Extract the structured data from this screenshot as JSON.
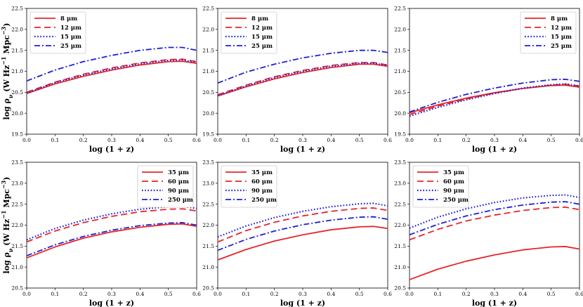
{
  "figure": {
    "ylabel": "log ρ",
    "ylabel_sub": "ν",
    "ylabel_units": "(W Hz",
    "ylabel_exp": "−1",
    "ylabel_units2": " Mpc",
    "ylabel_exp2": "−3",
    "ylabel_close": ")",
    "xlabel": "log (1 + z)"
  },
  "colors": {
    "red": "#e8242a",
    "blue": "#1f1fd6"
  },
  "chart_data": [
    {
      "type": "line",
      "panel": "top-left",
      "xlabel": "log (1 + z)",
      "ylabel": "log ρν (W Hz−1 Mpc−3)",
      "xlim": [
        0.0,
        0.6
      ],
      "ylim": [
        19.5,
        22.5
      ],
      "xticks": [
        "0.0",
        "0.1",
        "0.2",
        "0.3",
        "0.4",
        "0.5",
        "0.6"
      ],
      "yticks": [
        "19.5",
        "20.0",
        "20.5",
        "21.0",
        "21.5",
        "22.0",
        "22.5"
      ],
      "legend_position": "top-left",
      "x": [
        0.0,
        0.1,
        0.2,
        0.3,
        0.4,
        0.5,
        0.55,
        0.6
      ],
      "series": [
        {
          "name": "8 μm",
          "style": "solid",
          "color": "red",
          "values": [
            20.47,
            20.7,
            20.88,
            21.03,
            21.15,
            21.23,
            21.24,
            21.19
          ]
        },
        {
          "name": "12 μm",
          "style": "dashed",
          "color": "red",
          "values": [
            20.5,
            20.74,
            20.93,
            21.08,
            21.2,
            21.28,
            21.29,
            21.23
          ]
        },
        {
          "name": "15 μm",
          "style": "dotted",
          "color": "blue",
          "values": [
            20.48,
            20.73,
            20.91,
            21.06,
            21.18,
            21.26,
            21.27,
            21.21
          ]
        },
        {
          "name": "25 μm",
          "style": "dashdot",
          "color": "blue",
          "values": [
            20.77,
            21.03,
            21.23,
            21.38,
            21.5,
            21.57,
            21.57,
            21.5
          ]
        }
      ]
    },
    {
      "type": "line",
      "panel": "top-middle",
      "xlabel": "log (1 + z)",
      "ylabel": "",
      "xlim": [
        0.0,
        0.6
      ],
      "ylim": [
        19.5,
        22.5
      ],
      "xticks": [
        "0.0",
        "0.1",
        "0.2",
        "0.3",
        "0.4",
        "0.5",
        "0.6"
      ],
      "yticks": [
        "19.5",
        "20.0",
        "20.5",
        "21.0",
        "21.5",
        "22.0",
        "22.5"
      ],
      "legend_position": "top-left",
      "x": [
        0.0,
        0.1,
        0.2,
        0.3,
        0.4,
        0.5,
        0.55,
        0.6
      ],
      "series": [
        {
          "name": "8 μm",
          "style": "solid",
          "color": "red",
          "values": [
            20.41,
            20.63,
            20.82,
            20.97,
            21.09,
            21.17,
            21.17,
            21.12
          ]
        },
        {
          "name": "12 μm",
          "style": "dashed",
          "color": "red",
          "values": [
            20.44,
            20.67,
            20.87,
            21.02,
            21.14,
            21.21,
            21.21,
            21.15
          ]
        },
        {
          "name": "15 μm",
          "style": "dotted",
          "color": "blue",
          "values": [
            20.42,
            20.65,
            20.85,
            21.0,
            21.12,
            21.19,
            21.19,
            21.14
          ]
        },
        {
          "name": "25 μm",
          "style": "dashdot",
          "color": "blue",
          "values": [
            20.72,
            20.98,
            21.17,
            21.32,
            21.43,
            21.5,
            21.5,
            21.45
          ]
        }
      ]
    },
    {
      "type": "line",
      "panel": "top-right",
      "xlabel": "log (1 + z)",
      "ylabel": "",
      "xlim": [
        0.0,
        0.6
      ],
      "ylim": [
        19.5,
        22.5
      ],
      "xticks": [
        "0.0",
        "0.1",
        "0.2",
        "0.3",
        "0.4",
        "0.5",
        "0.6"
      ],
      "yticks": [
        "19.5",
        "20.0",
        "20.5",
        "21.0",
        "21.5",
        "22.0",
        "22.5"
      ],
      "legend_position": "top-right",
      "x": [
        0.0,
        0.1,
        0.2,
        0.3,
        0.4,
        0.5,
        0.55,
        0.6
      ],
      "series": [
        {
          "name": "8 μm",
          "style": "solid",
          "color": "red",
          "values": [
            20.01,
            20.2,
            20.36,
            20.49,
            20.59,
            20.66,
            20.67,
            20.62
          ]
        },
        {
          "name": "12 μm",
          "style": "dashed",
          "color": "red",
          "values": [
            19.97,
            20.17,
            20.34,
            20.48,
            20.59,
            20.67,
            20.69,
            20.65
          ]
        },
        {
          "name": "15 μm",
          "style": "dotted",
          "color": "blue",
          "values": [
            19.93,
            20.14,
            20.32,
            20.47,
            20.6,
            20.68,
            20.7,
            20.65
          ]
        },
        {
          "name": "25 μm",
          "style": "dashdot",
          "color": "blue",
          "values": [
            20.03,
            20.26,
            20.45,
            20.6,
            20.72,
            20.8,
            20.81,
            20.76
          ]
        }
      ]
    },
    {
      "type": "line",
      "panel": "bottom-left",
      "xlabel": "log (1 + z)",
      "ylabel": "log ρν (W Hz−1 Mpc−3)",
      "xlim": [
        0.0,
        0.6
      ],
      "ylim": [
        20.5,
        23.5
      ],
      "xticks": [
        "0.0",
        "0.1",
        "0.2",
        "0.3",
        "0.4",
        "0.5",
        "0.6"
      ],
      "yticks": [
        "20.5",
        "21.0",
        "21.5",
        "22.0",
        "22.5",
        "23.0",
        "23.5"
      ],
      "legend_position": "top-right",
      "x": [
        0.0,
        0.1,
        0.2,
        0.3,
        0.4,
        0.5,
        0.55,
        0.6
      ],
      "series": [
        {
          "name": "35 μm",
          "style": "solid",
          "color": "red",
          "values": [
            21.22,
            21.48,
            21.69,
            21.84,
            21.95,
            22.02,
            22.03,
            21.97
          ]
        },
        {
          "name": "60 μm",
          "style": "dashed",
          "color": "red",
          "values": [
            21.6,
            21.86,
            22.06,
            22.21,
            22.32,
            22.38,
            22.39,
            22.34
          ]
        },
        {
          "name": "90 μm",
          "style": "dotted",
          "color": "blue",
          "values": [
            21.65,
            21.92,
            22.12,
            22.27,
            22.38,
            22.44,
            22.45,
            22.4
          ]
        },
        {
          "name": "250 μm",
          "style": "dashdot",
          "color": "blue",
          "values": [
            21.27,
            21.53,
            21.73,
            21.88,
            21.99,
            22.05,
            22.06,
            22.0
          ]
        }
      ]
    },
    {
      "type": "line",
      "panel": "bottom-middle",
      "xlabel": "log (1 + z)",
      "ylabel": "",
      "xlim": [
        0.0,
        0.6
      ],
      "ylim": [
        20.5,
        23.5
      ],
      "xticks": [
        "0.0",
        "0.1",
        "0.2",
        "0.3",
        "0.4",
        "0.5",
        "0.6"
      ],
      "yticks": [
        "20.5",
        "21.0",
        "21.5",
        "22.0",
        "22.5",
        "23.0",
        "23.5"
      ],
      "legend_position": "top-left",
      "x": [
        0.0,
        0.1,
        0.2,
        0.3,
        0.4,
        0.5,
        0.55,
        0.6
      ],
      "series": [
        {
          "name": "35 μm",
          "style": "solid",
          "color": "red",
          "values": [
            21.17,
            21.42,
            21.62,
            21.77,
            21.89,
            21.96,
            21.97,
            21.92
          ]
        },
        {
          "name": "60 μm",
          "style": "dashed",
          "color": "red",
          "values": [
            21.6,
            21.87,
            22.07,
            22.22,
            22.33,
            22.4,
            22.41,
            22.35
          ]
        },
        {
          "name": "90 μm",
          "style": "dotted",
          "color": "blue",
          "values": [
            21.72,
            21.98,
            22.18,
            22.33,
            22.44,
            22.51,
            22.52,
            22.46
          ]
        },
        {
          "name": "250 μm",
          "style": "dashdot",
          "color": "blue",
          "values": [
            21.4,
            21.66,
            21.86,
            22.01,
            22.12,
            22.19,
            22.2,
            22.14
          ]
        }
      ]
    },
    {
      "type": "line",
      "panel": "bottom-right",
      "xlabel": "log (1 + z)",
      "ylabel": "",
      "xlim": [
        0.0,
        0.6
      ],
      "ylim": [
        20.5,
        23.5
      ],
      "xticks": [
        "0.0",
        "0.1",
        "0.2",
        "0.3",
        "0.4",
        "0.5",
        "0.6"
      ],
      "yticks": [
        "20.5",
        "21.0",
        "21.5",
        "22.0",
        "22.5",
        "23.0",
        "23.5"
      ],
      "legend_position": "top-left",
      "x": [
        0.0,
        0.1,
        0.2,
        0.3,
        0.4,
        0.5,
        0.55,
        0.6
      ],
      "series": [
        {
          "name": "35 μm",
          "style": "solid",
          "color": "red",
          "values": [
            20.7,
            20.95,
            21.14,
            21.29,
            21.41,
            21.48,
            21.49,
            21.43
          ]
        },
        {
          "name": "60 μm",
          "style": "dashed",
          "color": "red",
          "values": [
            21.65,
            21.9,
            22.1,
            22.24,
            22.35,
            22.42,
            22.43,
            22.37
          ]
        },
        {
          "name": "90 μm",
          "style": "dotted",
          "color": "blue",
          "values": [
            21.93,
            22.19,
            22.39,
            22.54,
            22.65,
            22.71,
            22.72,
            22.66
          ]
        },
        {
          "name": "250 μm",
          "style": "dashdot",
          "color": "blue",
          "values": [
            21.77,
            22.02,
            22.22,
            22.37,
            22.48,
            22.55,
            22.56,
            22.5
          ]
        }
      ]
    }
  ]
}
